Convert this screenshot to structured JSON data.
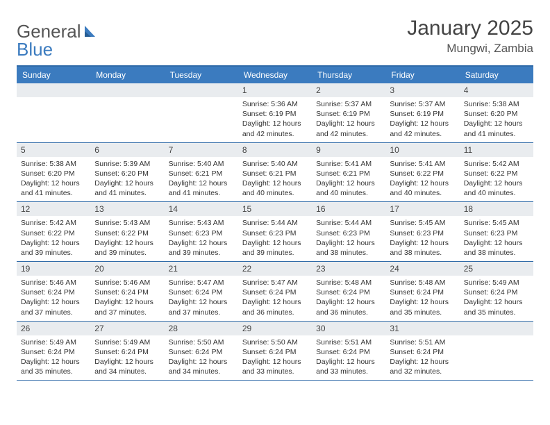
{
  "brand": {
    "part1": "General",
    "part2": "Blue"
  },
  "colors": {
    "accent": "#3b7bbf",
    "rule": "#2f6aa8",
    "band": "#e9ecef",
    "text": "#333333",
    "heading_text": "#444444",
    "white": "#ffffff"
  },
  "title": {
    "month_year": "January 2025",
    "location": "Mungwi, Zambia"
  },
  "day_headers": [
    "Sunday",
    "Monday",
    "Tuesday",
    "Wednesday",
    "Thursday",
    "Friday",
    "Saturday"
  ],
  "weeks": [
    [
      {
        "day": "",
        "sunrise": "",
        "sunset": "",
        "daylight1": "",
        "daylight2": ""
      },
      {
        "day": "",
        "sunrise": "",
        "sunset": "",
        "daylight1": "",
        "daylight2": ""
      },
      {
        "day": "",
        "sunrise": "",
        "sunset": "",
        "daylight1": "",
        "daylight2": ""
      },
      {
        "day": "1",
        "sunrise": "Sunrise: 5:36 AM",
        "sunset": "Sunset: 6:19 PM",
        "daylight1": "Daylight: 12 hours",
        "daylight2": "and 42 minutes."
      },
      {
        "day": "2",
        "sunrise": "Sunrise: 5:37 AM",
        "sunset": "Sunset: 6:19 PM",
        "daylight1": "Daylight: 12 hours",
        "daylight2": "and 42 minutes."
      },
      {
        "day": "3",
        "sunrise": "Sunrise: 5:37 AM",
        "sunset": "Sunset: 6:19 PM",
        "daylight1": "Daylight: 12 hours",
        "daylight2": "and 42 minutes."
      },
      {
        "day": "4",
        "sunrise": "Sunrise: 5:38 AM",
        "sunset": "Sunset: 6:20 PM",
        "daylight1": "Daylight: 12 hours",
        "daylight2": "and 41 minutes."
      }
    ],
    [
      {
        "day": "5",
        "sunrise": "Sunrise: 5:38 AM",
        "sunset": "Sunset: 6:20 PM",
        "daylight1": "Daylight: 12 hours",
        "daylight2": "and 41 minutes."
      },
      {
        "day": "6",
        "sunrise": "Sunrise: 5:39 AM",
        "sunset": "Sunset: 6:20 PM",
        "daylight1": "Daylight: 12 hours",
        "daylight2": "and 41 minutes."
      },
      {
        "day": "7",
        "sunrise": "Sunrise: 5:40 AM",
        "sunset": "Sunset: 6:21 PM",
        "daylight1": "Daylight: 12 hours",
        "daylight2": "and 41 minutes."
      },
      {
        "day": "8",
        "sunrise": "Sunrise: 5:40 AM",
        "sunset": "Sunset: 6:21 PM",
        "daylight1": "Daylight: 12 hours",
        "daylight2": "and 40 minutes."
      },
      {
        "day": "9",
        "sunrise": "Sunrise: 5:41 AM",
        "sunset": "Sunset: 6:21 PM",
        "daylight1": "Daylight: 12 hours",
        "daylight2": "and 40 minutes."
      },
      {
        "day": "10",
        "sunrise": "Sunrise: 5:41 AM",
        "sunset": "Sunset: 6:22 PM",
        "daylight1": "Daylight: 12 hours",
        "daylight2": "and 40 minutes."
      },
      {
        "day": "11",
        "sunrise": "Sunrise: 5:42 AM",
        "sunset": "Sunset: 6:22 PM",
        "daylight1": "Daylight: 12 hours",
        "daylight2": "and 40 minutes."
      }
    ],
    [
      {
        "day": "12",
        "sunrise": "Sunrise: 5:42 AM",
        "sunset": "Sunset: 6:22 PM",
        "daylight1": "Daylight: 12 hours",
        "daylight2": "and 39 minutes."
      },
      {
        "day": "13",
        "sunrise": "Sunrise: 5:43 AM",
        "sunset": "Sunset: 6:22 PM",
        "daylight1": "Daylight: 12 hours",
        "daylight2": "and 39 minutes."
      },
      {
        "day": "14",
        "sunrise": "Sunrise: 5:43 AM",
        "sunset": "Sunset: 6:23 PM",
        "daylight1": "Daylight: 12 hours",
        "daylight2": "and 39 minutes."
      },
      {
        "day": "15",
        "sunrise": "Sunrise: 5:44 AM",
        "sunset": "Sunset: 6:23 PM",
        "daylight1": "Daylight: 12 hours",
        "daylight2": "and 39 minutes."
      },
      {
        "day": "16",
        "sunrise": "Sunrise: 5:44 AM",
        "sunset": "Sunset: 6:23 PM",
        "daylight1": "Daylight: 12 hours",
        "daylight2": "and 38 minutes."
      },
      {
        "day": "17",
        "sunrise": "Sunrise: 5:45 AM",
        "sunset": "Sunset: 6:23 PM",
        "daylight1": "Daylight: 12 hours",
        "daylight2": "and 38 minutes."
      },
      {
        "day": "18",
        "sunrise": "Sunrise: 5:45 AM",
        "sunset": "Sunset: 6:23 PM",
        "daylight1": "Daylight: 12 hours",
        "daylight2": "and 38 minutes."
      }
    ],
    [
      {
        "day": "19",
        "sunrise": "Sunrise: 5:46 AM",
        "sunset": "Sunset: 6:24 PM",
        "daylight1": "Daylight: 12 hours",
        "daylight2": "and 37 minutes."
      },
      {
        "day": "20",
        "sunrise": "Sunrise: 5:46 AM",
        "sunset": "Sunset: 6:24 PM",
        "daylight1": "Daylight: 12 hours",
        "daylight2": "and 37 minutes."
      },
      {
        "day": "21",
        "sunrise": "Sunrise: 5:47 AM",
        "sunset": "Sunset: 6:24 PM",
        "daylight1": "Daylight: 12 hours",
        "daylight2": "and 37 minutes."
      },
      {
        "day": "22",
        "sunrise": "Sunrise: 5:47 AM",
        "sunset": "Sunset: 6:24 PM",
        "daylight1": "Daylight: 12 hours",
        "daylight2": "and 36 minutes."
      },
      {
        "day": "23",
        "sunrise": "Sunrise: 5:48 AM",
        "sunset": "Sunset: 6:24 PM",
        "daylight1": "Daylight: 12 hours",
        "daylight2": "and 36 minutes."
      },
      {
        "day": "24",
        "sunrise": "Sunrise: 5:48 AM",
        "sunset": "Sunset: 6:24 PM",
        "daylight1": "Daylight: 12 hours",
        "daylight2": "and 35 minutes."
      },
      {
        "day": "25",
        "sunrise": "Sunrise: 5:49 AM",
        "sunset": "Sunset: 6:24 PM",
        "daylight1": "Daylight: 12 hours",
        "daylight2": "and 35 minutes."
      }
    ],
    [
      {
        "day": "26",
        "sunrise": "Sunrise: 5:49 AM",
        "sunset": "Sunset: 6:24 PM",
        "daylight1": "Daylight: 12 hours",
        "daylight2": "and 35 minutes."
      },
      {
        "day": "27",
        "sunrise": "Sunrise: 5:49 AM",
        "sunset": "Sunset: 6:24 PM",
        "daylight1": "Daylight: 12 hours",
        "daylight2": "and 34 minutes."
      },
      {
        "day": "28",
        "sunrise": "Sunrise: 5:50 AM",
        "sunset": "Sunset: 6:24 PM",
        "daylight1": "Daylight: 12 hours",
        "daylight2": "and 34 minutes."
      },
      {
        "day": "29",
        "sunrise": "Sunrise: 5:50 AM",
        "sunset": "Sunset: 6:24 PM",
        "daylight1": "Daylight: 12 hours",
        "daylight2": "and 33 minutes."
      },
      {
        "day": "30",
        "sunrise": "Sunrise: 5:51 AM",
        "sunset": "Sunset: 6:24 PM",
        "daylight1": "Daylight: 12 hours",
        "daylight2": "and 33 minutes."
      },
      {
        "day": "31",
        "sunrise": "Sunrise: 5:51 AM",
        "sunset": "Sunset: 6:24 PM",
        "daylight1": "Daylight: 12 hours",
        "daylight2": "and 32 minutes."
      },
      {
        "day": "",
        "sunrise": "",
        "sunset": "",
        "daylight1": "",
        "daylight2": ""
      }
    ]
  ]
}
